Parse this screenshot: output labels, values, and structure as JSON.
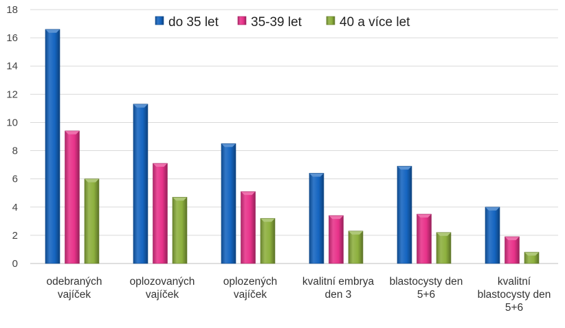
{
  "chart_data": {
    "type": "bar",
    "categories": [
      [
        "odebraných",
        "vajíček"
      ],
      [
        "oplozovaných",
        "vajíček"
      ],
      [
        "oplozených",
        "vajíček"
      ],
      [
        "kvalitní embrya",
        "den 3"
      ],
      [
        "blastocysty den",
        "5+6"
      ],
      [
        "kvalitní",
        "blastocysty den",
        "5+6"
      ]
    ],
    "series": [
      {
        "name": "do 35 let",
        "color": "#1565C0",
        "values": [
          16.6,
          11.3,
          8.5,
          6.4,
          6.9,
          4.0
        ]
      },
      {
        "name": "35-39 let",
        "color": "#E8338A",
        "values": [
          9.4,
          7.1,
          5.1,
          3.4,
          3.5,
          1.9
        ]
      },
      {
        "name": "40 a více let",
        "color": "#8DB03E",
        "values": [
          6.0,
          4.7,
          3.2,
          2.3,
          2.2,
          0.8
        ]
      }
    ],
    "ylim": [
      0,
      18
    ],
    "yticks": [
      0,
      2,
      4,
      6,
      8,
      10,
      12,
      14,
      16,
      18
    ],
    "grid": true,
    "legend_position": "top-center"
  }
}
